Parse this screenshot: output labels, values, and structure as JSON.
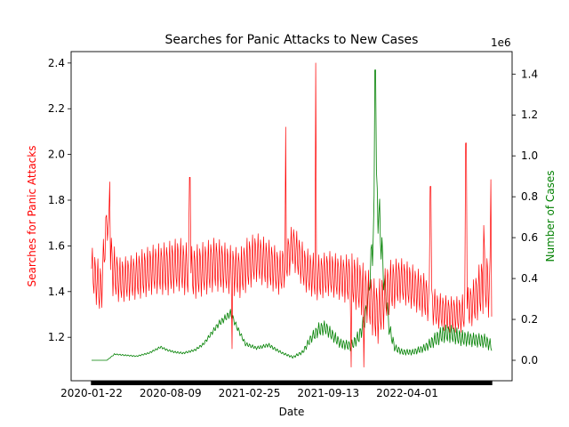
{
  "chart_data": {
    "type": "line",
    "title": "Searches for Panic Attacks to New Cases",
    "xlabel": "Date",
    "x_ticks": [
      "2020-01-22",
      "2020-08-09",
      "2021-02-25",
      "2021-09-13",
      "2022-04-01"
    ],
    "x_range": [
      "2020-01-22",
      "2022-11-01"
    ],
    "y_left": {
      "label": "Searches for Panic Attacks",
      "color": "#ff0000",
      "range": [
        1.01,
        2.45
      ],
      "ticks": [
        1.2,
        1.4,
        1.6,
        1.8,
        2.0,
        2.2,
        2.4
      ],
      "tick_labels": [
        "1.2",
        "1.4",
        "1.6",
        "1.8",
        "2.0",
        "2.2",
        "2.4"
      ]
    },
    "y_right": {
      "label": "Number of Cases",
      "color": "#008000",
      "range": [
        -100000,
        1510000
      ],
      "offset_label": "1e6",
      "ticks": [
        0,
        200000,
        400000,
        600000,
        800000,
        1000000,
        1200000,
        1400000
      ],
      "tick_labels": [
        "0.0",
        "0.2",
        "0.4",
        "0.6",
        "0.8",
        "1.0",
        "1.2",
        "1.4"
      ]
    },
    "grid": false,
    "series": [
      {
        "name": "Searches for Panic Attacks",
        "axis": "left",
        "color": "#ff0000",
        "x": [
          "2020-01-22",
          "2020-02-15",
          "2020-03-01",
          "2020-03-15",
          "2020-04-01",
          "2020-05-01",
          "2020-06-01",
          "2020-07-01",
          "2020-08-01",
          "2020-09-01",
          "2020-10-01",
          "2020-11-01",
          "2020-12-01",
          "2021-01-01",
          "2021-02-01",
          "2021-02-20",
          "2021-03-15",
          "2021-04-15",
          "2021-05-15",
          "2021-06-15",
          "2021-07-15",
          "2021-08-15",
          "2021-09-15",
          "2021-10-15",
          "2021-11-15",
          "2021-12-15",
          "2022-01-15",
          "2022-02-15",
          "2022-03-15",
          "2022-04-15",
          "2022-05-15",
          "2022-06-15",
          "2022-07-15",
          "2022-08-15",
          "2022-09-15",
          "2022-10-15",
          "2022-11-01"
        ],
        "y": [
          1.5,
          1.4,
          1.72,
          1.5,
          1.45,
          1.46,
          1.48,
          1.5,
          1.5,
          1.52,
          1.48,
          1.5,
          1.52,
          1.5,
          1.48,
          1.52,
          1.55,
          1.52,
          1.48,
          1.6,
          1.5,
          1.46,
          1.48,
          1.46,
          1.45,
          1.4,
          1.3,
          1.42,
          1.45,
          1.42,
          1.38,
          1.32,
          1.3,
          1.3,
          1.35,
          1.45,
          1.4
        ],
        "amplitude": [
          0.1,
          0.12,
          0.08,
          0.12,
          0.1,
          0.1,
          0.11,
          0.11,
          0.12,
          0.12,
          0.12,
          0.12,
          0.12,
          0.11,
          0.11,
          0.12,
          0.11,
          0.11,
          0.1,
          0.1,
          0.1,
          0.1,
          0.1,
          0.1,
          0.12,
          0.12,
          0.14,
          0.12,
          0.1,
          0.1,
          0.1,
          0.08,
          0.08,
          0.08,
          0.1,
          0.14,
          0.14
        ],
        "spikes": [
          {
            "x": "2020-03-08",
            "y": 1.88
          },
          {
            "x": "2020-09-27",
            "y": 1.9
          },
          {
            "x": "2021-01-12",
            "y": 1.15
          },
          {
            "x": "2021-05-28",
            "y": 2.12
          },
          {
            "x": "2021-08-12",
            "y": 2.4
          },
          {
            "x": "2021-11-10",
            "y": 1.07
          },
          {
            "x": "2021-12-12",
            "y": 1.07
          },
          {
            "x": "2022-05-30",
            "y": 1.86
          },
          {
            "x": "2022-08-28",
            "y": 2.05
          },
          {
            "x": "2022-10-12",
            "y": 1.69
          },
          {
            "x": "2022-10-30",
            "y": 1.89
          }
        ]
      },
      {
        "name": "Number of Cases",
        "axis": "right",
        "color": "#008000",
        "x": [
          "2020-01-22",
          "2020-03-01",
          "2020-03-20",
          "2020-04-15",
          "2020-05-15",
          "2020-06-15",
          "2020-07-15",
          "2020-08-01",
          "2020-08-20",
          "2020-09-10",
          "2020-10-10",
          "2020-11-01",
          "2020-11-20",
          "2020-12-10",
          "2021-01-08",
          "2021-01-25",
          "2021-02-15",
          "2021-03-15",
          "2021-04-15",
          "2021-05-01",
          "2021-05-20",
          "2021-06-15",
          "2021-07-10",
          "2021-08-01",
          "2021-08-20",
          "2021-09-05",
          "2021-09-25",
          "2021-10-15",
          "2021-11-10",
          "2021-12-01",
          "2021-12-15",
          "2021-12-25",
          "2022-01-05",
          "2022-01-12",
          "2022-01-20",
          "2022-02-01",
          "2022-02-15",
          "2022-03-01",
          "2022-03-20",
          "2022-04-15",
          "2022-05-15",
          "2022-06-10",
          "2022-07-01",
          "2022-07-20",
          "2022-08-15",
          "2022-09-15",
          "2022-10-15",
          "2022-11-01"
        ],
        "y": [
          0,
          0,
          30000,
          25000,
          20000,
          35000,
          65000,
          50000,
          40000,
          35000,
          50000,
          80000,
          130000,
          180000,
          230000,
          160000,
          80000,
          60000,
          75000,
          55000,
          35000,
          15000,
          40000,
          110000,
          150000,
          160000,
          120000,
          80000,
          70000,
          120000,
          200000,
          350000,
          620000,
          830000,
          700000,
          400000,
          150000,
          60000,
          40000,
          40000,
          60000,
          100000,
          130000,
          130000,
          110000,
          100000,
          95000,
          70000
        ],
        "amplitude": [
          0,
          0,
          3000,
          3000,
          3000,
          4000,
          6000,
          5000,
          5000,
          5000,
          6000,
          8000,
          12000,
          16000,
          20000,
          15000,
          10000,
          8000,
          10000,
          8000,
          6000,
          6000,
          10000,
          25000,
          35000,
          35000,
          30000,
          25000,
          25000,
          35000,
          45000,
          70000,
          120000,
          150000,
          120000,
          80000,
          40000,
          20000,
          15000,
          15000,
          20000,
          35000,
          45000,
          45000,
          40000,
          35000,
          35000,
          30000
        ],
        "spikes": [
          {
            "x": "2022-01-10",
            "y": 1420000
          }
        ]
      }
    ]
  }
}
